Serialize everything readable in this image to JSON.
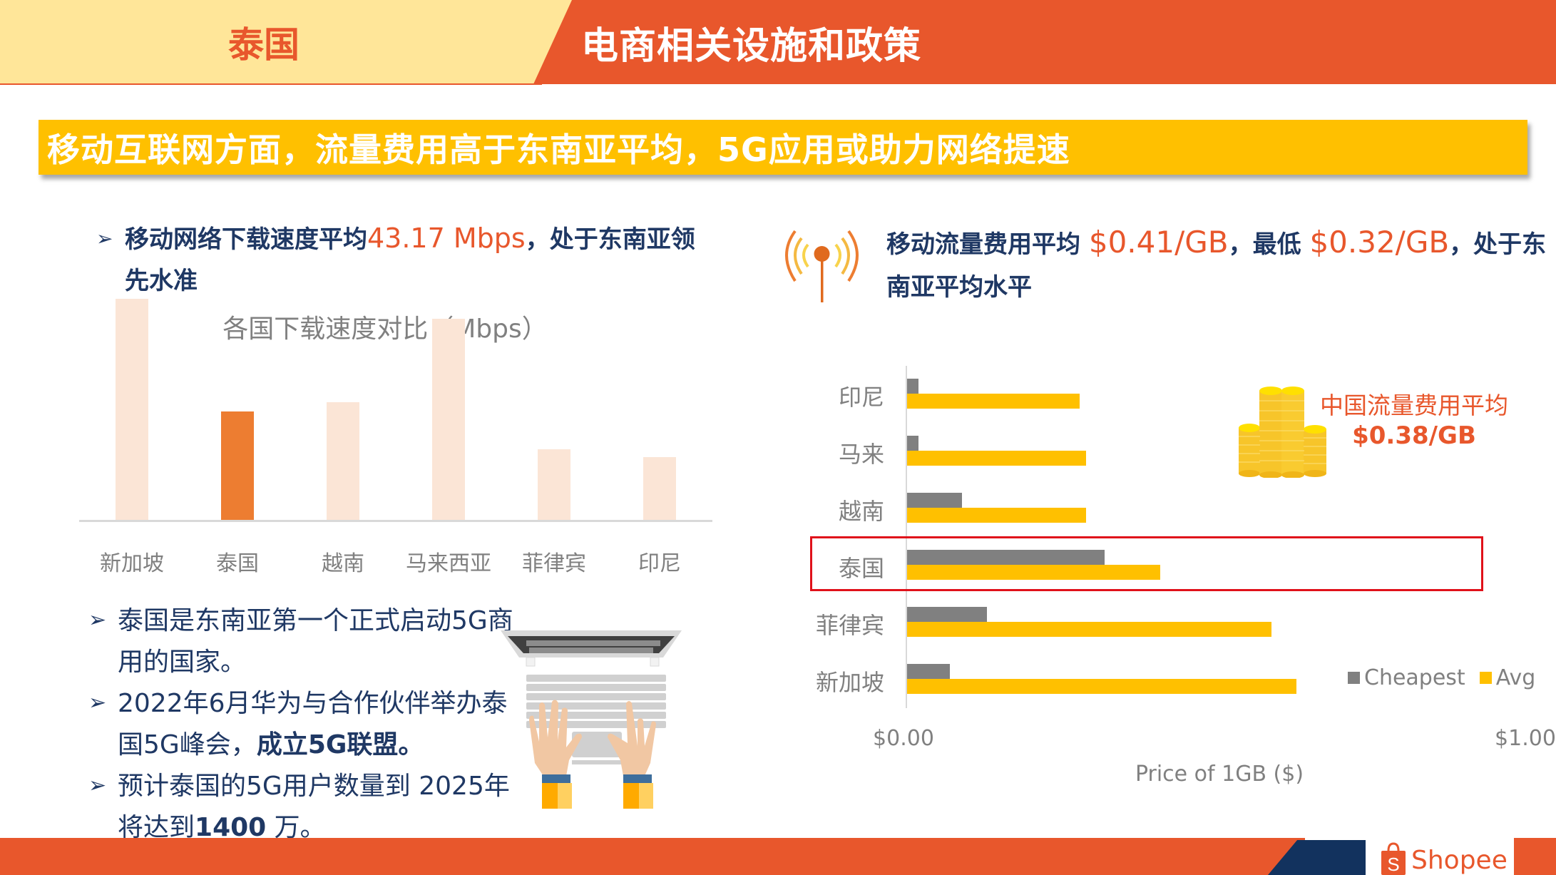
{
  "header": {
    "country": "泰国",
    "title": "电商相关设施和政策"
  },
  "banner": {
    "text": "移动互联网方面，流量费用高于东南亚平均，5G应用或助力网络提速"
  },
  "speed_section": {
    "text_before": "移动网络下载速度平均",
    "highlight": "43.17 Mbps",
    "text_after": "，处于东南亚领先水准",
    "chart_title": "各国下载速度对比（Mbps）"
  },
  "bullets": [
    {
      "text": "泰国是东南亚第一个正式启动5G商用的国家。"
    },
    {
      "text_before": "2022年6月华为与合作伙伴举办泰国5G峰会，",
      "bold": "成立5G联盟。"
    },
    {
      "text_before": "预计泰国的5G用户数量到 2025年将达到",
      "bold": "1400",
      "text_after": " 万。"
    }
  ],
  "fee_section": {
    "t1": "移动流量费用平均 ",
    "avg": "$0.41/GB",
    "t2": "，最低 ",
    "min": "$0.32/GB",
    "t3": "，处于东南亚平均水平"
  },
  "china_note": {
    "label": "中国流量费用平均",
    "value": "$0.38/GB"
  },
  "footer": {
    "logo_text": "Shopee"
  },
  "colors": {
    "brand_orange": "#E8572C",
    "header_yellow": "#FFE699",
    "banner_yellow": "#FFC000",
    "navy": "#1F3864",
    "bar_light": "#FBE5D6",
    "bar_highlight": "#ED7D31",
    "cheapest_gray": "#808080",
    "highlight_red": "#E0111A"
  },
  "chart_data": [
    {
      "type": "bar",
      "title": "各国下载速度对比（Mbps）",
      "categories": [
        "新加坡",
        "泰国",
        "越南",
        "马来西亚",
        "菲律宾",
        "印尼"
      ],
      "values": [
        88,
        43.17,
        47,
        80,
        28,
        25
      ],
      "highlight": "泰国",
      "xlabel": "",
      "ylabel": "Mbps",
      "grid": false,
      "legend": "none"
    },
    {
      "type": "bar",
      "orientation": "horizontal",
      "title": "",
      "categories": [
        "印尼",
        "马来",
        "越南",
        "泰国",
        "菲律宾",
        "新加坡"
      ],
      "series": [
        {
          "name": "Cheapest",
          "values": [
            0.02,
            0.02,
            0.09,
            0.32,
            0.13,
            0.07
          ]
        },
        {
          "name": "Avg",
          "values": [
            0.28,
            0.29,
            0.29,
            0.41,
            0.59,
            0.63
          ]
        }
      ],
      "xlabel": "Price of 1GB ($)",
      "xticks": [
        "$0.00",
        "$1.00"
      ],
      "xlim": [
        0,
        1
      ],
      "legend_position": "bottom-right",
      "highlight": "泰国"
    }
  ]
}
